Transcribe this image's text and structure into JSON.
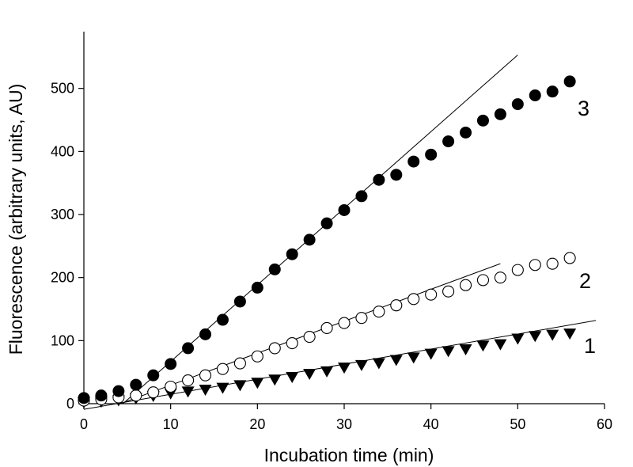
{
  "chart_data": {
    "type": "scatter",
    "xlabel": "Incubation time (min)",
    "ylabel": "Fluorescence (arbitrary units, AU)",
    "xlim": [
      0,
      60
    ],
    "ylim": [
      0,
      590
    ],
    "xticks": [
      0,
      10,
      20,
      30,
      40,
      50,
      60
    ],
    "yticks": [
      0,
      100,
      200,
      300,
      400,
      500
    ],
    "grid": false,
    "legend": "none",
    "series": [
      {
        "name": "1",
        "marker": "filled-triangle-down",
        "color": "#000000",
        "x": [
          0,
          2,
          4,
          6,
          8,
          10,
          12,
          14,
          16,
          18,
          20,
          22,
          24,
          26,
          28,
          30,
          32,
          34,
          36,
          38,
          40,
          42,
          44,
          46,
          48,
          50,
          52,
          54,
          56
        ],
        "y": [
          2,
          3,
          5,
          8,
          12,
          16,
          19,
          22,
          25,
          29,
          33,
          38,
          42,
          47,
          51,
          57,
          61,
          64,
          69,
          73,
          79,
          83,
          86,
          92,
          94,
          103,
          107,
          109,
          111
        ],
        "fit": {
          "x": [
            0,
            59
          ],
          "y": [
            -9,
            132
          ]
        }
      },
      {
        "name": "2",
        "marker": "open-circle",
        "color": "#000000",
        "x": [
          0,
          2,
          4,
          6,
          8,
          10,
          12,
          14,
          16,
          18,
          20,
          22,
          24,
          26,
          28,
          30,
          32,
          34,
          36,
          38,
          40,
          42,
          44,
          46,
          48,
          50,
          52,
          54,
          56
        ],
        "y": [
          5,
          7,
          10,
          13,
          18,
          27,
          37,
          45,
          55,
          64,
          75,
          88,
          96,
          106,
          120,
          128,
          136,
          146,
          156,
          166,
          173,
          178,
          188,
          196,
          200,
          212,
          220,
          222,
          231
        ],
        "fit": {
          "x": [
            4.2,
            48
          ],
          "y": [
            0,
            222
          ]
        }
      },
      {
        "name": "3",
        "marker": "filled-circle",
        "color": "#000000",
        "x": [
          0,
          2,
          4,
          6,
          8,
          10,
          12,
          14,
          16,
          18,
          20,
          22,
          24,
          26,
          28,
          30,
          32,
          34,
          36,
          38,
          40,
          42,
          44,
          46,
          48,
          50,
          52,
          54,
          56
        ],
        "y": [
          9,
          13,
          20,
          30,
          45,
          63,
          88,
          110,
          133,
          162,
          184,
          213,
          237,
          260,
          286,
          307,
          329,
          355,
          363,
          384,
          395,
          416,
          430,
          449,
          459,
          475,
          489,
          495,
          511
        ],
        "fit": {
          "x": [
            4.5,
            50
          ],
          "y": [
            0,
            553
          ]
        }
      }
    ]
  }
}
